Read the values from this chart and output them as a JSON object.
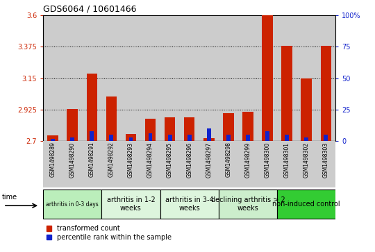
{
  "title": "GDS6064 / 10601466",
  "samples": [
    "GSM1498289",
    "GSM1498290",
    "GSM1498291",
    "GSM1498292",
    "GSM1498293",
    "GSM1498294",
    "GSM1498295",
    "GSM1498296",
    "GSM1498297",
    "GSM1498298",
    "GSM1498299",
    "GSM1498300",
    "GSM1498301",
    "GSM1498302",
    "GSM1498303"
  ],
  "red_values": [
    2.74,
    2.93,
    3.18,
    3.02,
    2.75,
    2.86,
    2.87,
    2.87,
    2.72,
    2.9,
    2.91,
    3.6,
    3.38,
    3.15,
    3.38
  ],
  "blue_values": [
    2,
    3,
    8,
    5,
    3,
    6,
    5,
    5,
    10,
    5,
    5,
    8,
    5,
    3,
    5
  ],
  "ymin": 2.7,
  "ymax": 3.6,
  "yticks_red": [
    2.7,
    2.925,
    3.15,
    3.375,
    3.6
  ],
  "ytick_labels_red": [
    "2.7",
    "2.925",
    "3.15",
    "3.375",
    "3.6"
  ],
  "yticks_blue": [
    0,
    25,
    50,
    75,
    100
  ],
  "ytick_labels_blue": [
    "0",
    "25",
    "50",
    "75",
    "100%"
  ],
  "grid_lines": [
    2.925,
    3.15,
    3.375
  ],
  "groups": [
    {
      "label": "arthritis in 0-3 days",
      "start": 0,
      "end": 3,
      "color": "#bbeebb",
      "fontsize_small": true
    },
    {
      "label": "arthritis in 1-2\nweeks",
      "start": 3,
      "end": 6,
      "color": "#ddf5dd",
      "fontsize_small": false
    },
    {
      "label": "arthritis in 3-4\nweeks",
      "start": 6,
      "end": 9,
      "color": "#ddf5dd",
      "fontsize_small": false
    },
    {
      "label": "declining arthritis > 2\nweeks",
      "start": 9,
      "end": 12,
      "color": "#cceecc",
      "fontsize_small": false
    },
    {
      "label": "non-induced control",
      "start": 12,
      "end": 15,
      "color": "#33cc33",
      "fontsize_small": false
    }
  ],
  "bar_width": 0.55,
  "red_color": "#cc2200",
  "blue_color": "#1122cc",
  "bg_color": "#cccccc",
  "legend_red_label": "transformed count",
  "legend_blue_label": "percentile rank within the sample",
  "time_label": "time"
}
